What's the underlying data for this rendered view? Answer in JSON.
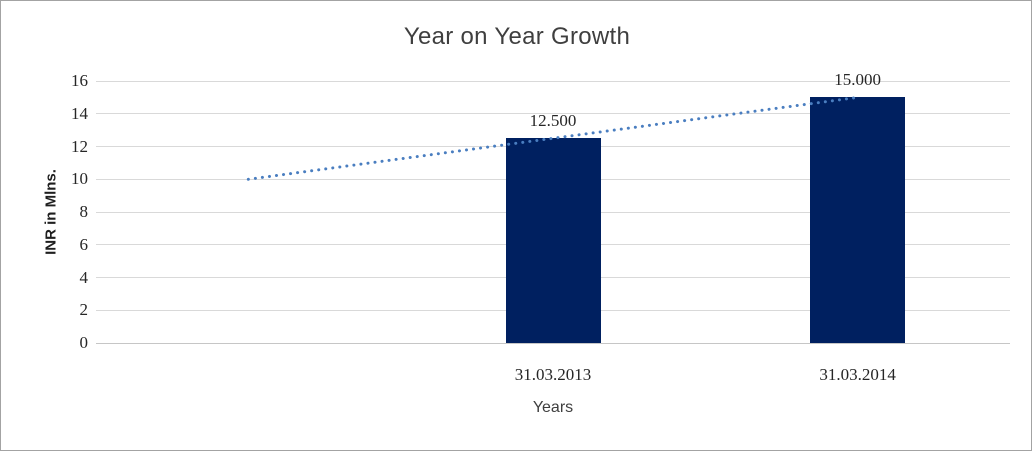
{
  "window": {
    "background": "#ffffff",
    "frame_border_color": "#a3a3a3"
  },
  "chart_data": {
    "type": "bar",
    "title": "Year on Year Growth",
    "xlabel": "Years",
    "ylabel": "INR in Mlns.",
    "categories": [
      "",
      "31.03.2013",
      "31.03.2014"
    ],
    "series": [
      {
        "name": "INR in Mlns.",
        "values": [
          null,
          12.5,
          15
        ]
      }
    ],
    "data_labels": [
      "",
      "12.500",
      "15.000"
    ],
    "trendline": {
      "type": "linear",
      "style": "dotted",
      "values": [
        10,
        12.5,
        15
      ],
      "color": "#4a7ec0"
    },
    "ylim": [
      0,
      16
    ],
    "yticks": [
      0,
      2,
      4,
      6,
      8,
      10,
      12,
      14,
      16
    ],
    "bar_color": "#002060",
    "gridline_color": "#d9d9d9",
    "grid": true,
    "legend": "none",
    "title_color": "#3f3f3f",
    "tick_label_color": "#262626"
  }
}
